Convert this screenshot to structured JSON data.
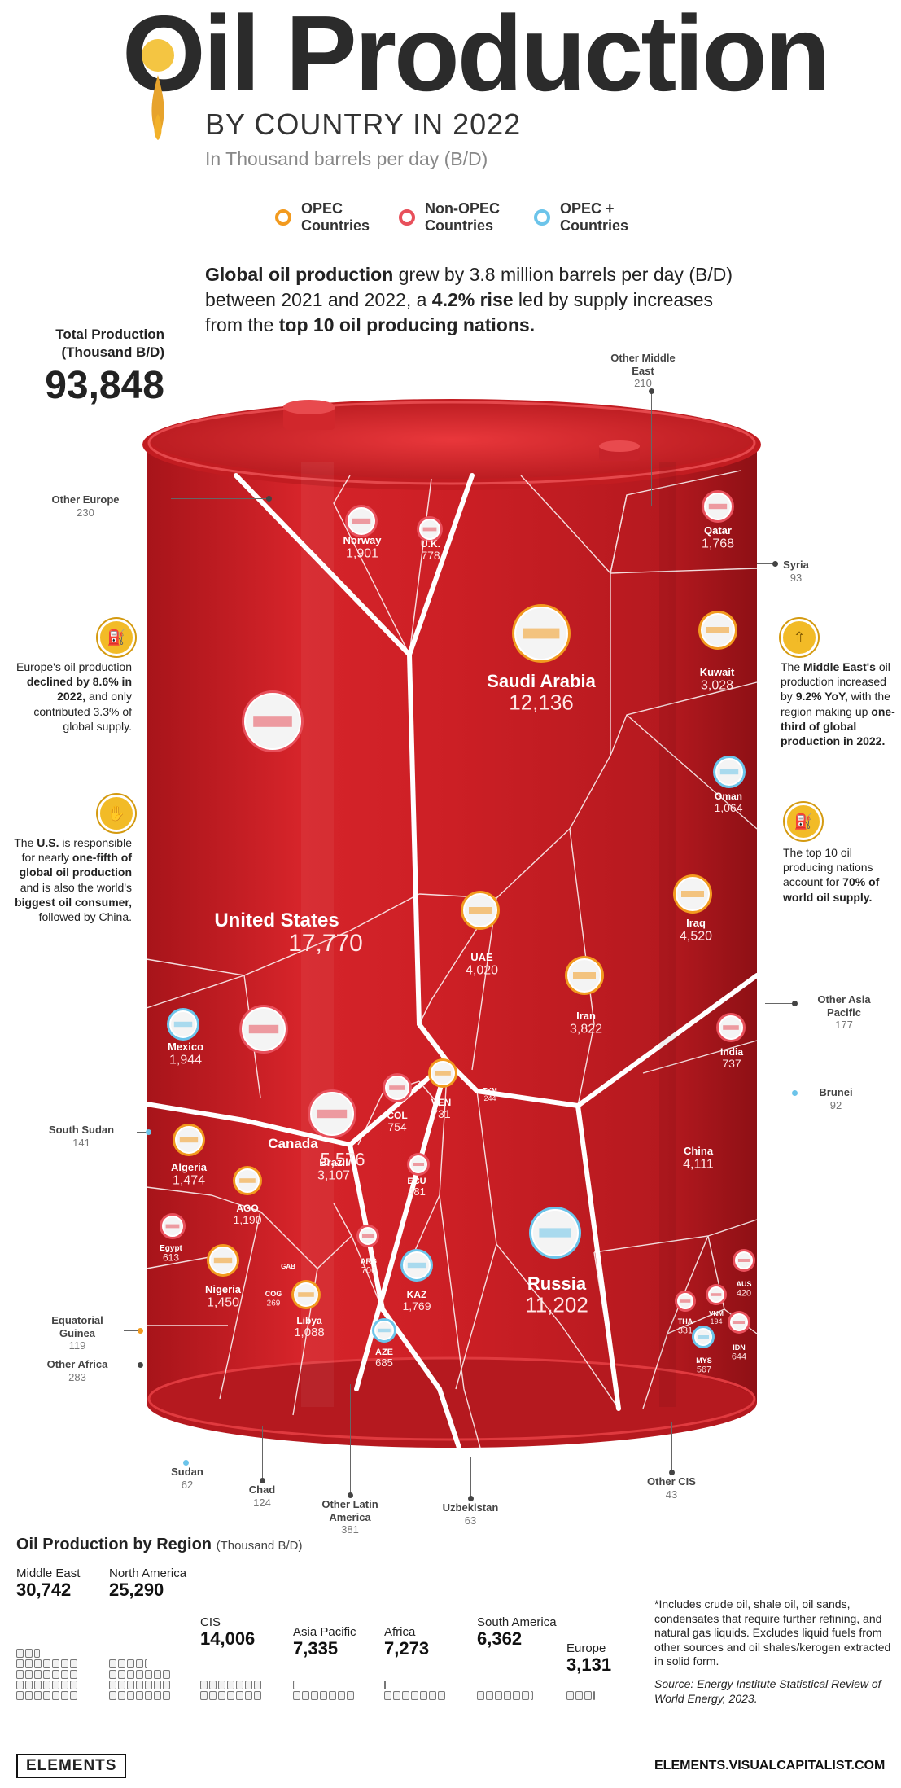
{
  "header": {
    "title": "Oil Production",
    "subtitle": "BY COUNTRY IN 2022",
    "unit": "In Thousand barrels per day (B/D)"
  },
  "legend": [
    {
      "label": "OPEC Countries",
      "color": "#f29a1f"
    },
    {
      "label": "Non-OPEC Countries",
      "color": "#e8505b"
    },
    {
      "label": "OPEC + Countries",
      "color": "#6cc4ea"
    }
  ],
  "intro": {
    "p1": "Global oil production",
    "p2": " grew by 3.8 million barrels per day (B/D) between 2021 and 2022, a ",
    "p3": "4.2% rise",
    "p4": " led by supply increases from the ",
    "p5": "top 10 oil producing nations."
  },
  "total": {
    "label": "Total Production (Thousand B/D)",
    "value": "93,848"
  },
  "callouts": {
    "europe": {
      "a": "Europe's oil production ",
      "b": "declined by 8.6% in 2022,",
      "c": " and only contributed 3.3% of global supply."
    },
    "us": {
      "a": "The ",
      "b": "U.S.",
      "c": " is responsible for nearly ",
      "d": "one-fifth of global oil production",
      "e": " and is also the world's ",
      "f": "biggest oil consumer,",
      "g": " followed by China."
    },
    "middle_east": {
      "a": "The ",
      "b": "Middle East's",
      "c": " oil production increased by ",
      "d": "9.2% YoY,",
      "e": " with the region making up ",
      "f": "one-third of global production in 2022."
    },
    "top10": {
      "a": "The top 10 oil producing nations account for ",
      "b": "70% of world oil supply."
    }
  },
  "chart_data": [
    {
      "type": "treemap",
      "title": "Oil Production by Country in 2022",
      "unit": "Thousand barrels per day (B/D)",
      "countries": [
        {
          "name": "United States",
          "value": 17770,
          "group": "Non-OPEC"
        },
        {
          "name": "Saudi Arabia",
          "value": 12136,
          "group": "OPEC"
        },
        {
          "name": "Russia",
          "value": 11202,
          "group": "OPEC+"
        },
        {
          "name": "Canada",
          "value": 5576,
          "group": "Non-OPEC"
        },
        {
          "name": "Iraq",
          "value": 4520,
          "group": "OPEC"
        },
        {
          "name": "China",
          "value": 4111,
          "group": "Non-OPEC"
        },
        {
          "name": "UAE",
          "value": 4020,
          "group": "OPEC"
        },
        {
          "name": "Iran",
          "value": 3822,
          "group": "OPEC"
        },
        {
          "name": "Brazil",
          "value": 3107,
          "group": "Non-OPEC"
        },
        {
          "name": "Kuwait",
          "value": 3028,
          "group": "OPEC"
        },
        {
          "name": "Mexico",
          "value": 1944,
          "group": "OPEC+"
        },
        {
          "name": "Norway",
          "value": 1901,
          "group": "Non-OPEC"
        },
        {
          "name": "KAZ",
          "value": 1769,
          "group": "OPEC+"
        },
        {
          "name": "Qatar",
          "value": 1768,
          "group": "Non-OPEC"
        },
        {
          "name": "Algeria",
          "value": 1474,
          "group": "OPEC"
        },
        {
          "name": "Nigeria",
          "value": 1450,
          "group": "OPEC"
        },
        {
          "name": "AGO",
          "value": 1190,
          "group": "OPEC"
        },
        {
          "name": "Libya",
          "value": 1088,
          "group": "OPEC"
        },
        {
          "name": "Oman",
          "value": 1064,
          "group": "OPEC+"
        },
        {
          "name": "U.K.",
          "value": 778,
          "group": "Non-OPEC"
        },
        {
          "name": "COL",
          "value": 754,
          "group": "Non-OPEC"
        },
        {
          "name": "India",
          "value": 737,
          "group": "Non-OPEC"
        },
        {
          "name": "VEN",
          "value": 731,
          "group": "OPEC"
        },
        {
          "name": "ARG",
          "value": 706,
          "group": "Non-OPEC"
        },
        {
          "name": "AZE",
          "value": 685,
          "group": "OPEC+"
        },
        {
          "name": "IDN",
          "value": 644,
          "group": "Non-OPEC"
        },
        {
          "name": "Egypt",
          "value": 613,
          "group": "Non-OPEC"
        },
        {
          "name": "MYS",
          "value": 567,
          "group": "OPEC+"
        },
        {
          "name": "ECU",
          "value": 481,
          "group": "Non-OPEC"
        },
        {
          "name": "AUS",
          "value": 420,
          "group": "Non-OPEC"
        },
        {
          "name": "Other Latin America",
          "value": 381,
          "group": "Non-OPEC"
        },
        {
          "name": "THA",
          "value": 331,
          "group": "Non-OPEC"
        },
        {
          "name": "Other Africa",
          "value": 283,
          "group": "Non-OPEC"
        },
        {
          "name": "COG",
          "value": 269,
          "group": "OPEC"
        },
        {
          "name": "TKM",
          "value": 244,
          "group": "Non-OPEC"
        },
        {
          "name": "Other Europe",
          "value": 230,
          "group": "Non-OPEC"
        },
        {
          "name": "Other Middle East",
          "value": 210,
          "group": "Non-OPEC"
        },
        {
          "name": "VNM",
          "value": 194,
          "group": "Non-OPEC"
        },
        {
          "name": "Other Asia Pacific",
          "value": 177,
          "group": "Non-OPEC"
        },
        {
          "name": "South Sudan",
          "value": 141,
          "group": "OPEC+"
        },
        {
          "name": "Chad",
          "value": 124,
          "group": "Non-OPEC"
        },
        {
          "name": "Equatorial Guinea",
          "value": 119,
          "group": "OPEC"
        },
        {
          "name": "Syria",
          "value": 93,
          "group": "Non-OPEC"
        },
        {
          "name": "Brunei",
          "value": 92,
          "group": "OPEC+"
        },
        {
          "name": "Uzbekistan",
          "value": 63,
          "group": "Non-OPEC"
        },
        {
          "name": "Sudan",
          "value": 62,
          "group": "OPEC+"
        },
        {
          "name": "Other CIS",
          "value": 43,
          "group": "Non-OPEC"
        }
      ]
    },
    {
      "type": "bar",
      "title": "Oil Production by Region",
      "unit": "(Thousand B/D)",
      "categories": [
        "Middle East",
        "North America",
        "CIS",
        "Asia Pacific",
        "Africa",
        "South America",
        "Europe"
      ],
      "values": [
        30742,
        25290,
        14006,
        7335,
        7273,
        6362,
        3131
      ],
      "labels": [
        "30,742",
        "25,290",
        "14,006",
        "7,335",
        "7,273",
        "6,362",
        "3,131"
      ]
    }
  ],
  "footnote": "*Includes crude oil, shale oil, oil sands, condensates that require further refining, and natural gas liquids. Excludes liquid fuels from other sources and oil shales/kerogen extracted in solid form.",
  "source": "Source: Energy Institute Statistical Review of World Energy, 2023.",
  "brand": {
    "left": "ELEMENTS",
    "right": "ELEMENTS.VISUALCAPITALIST.COM"
  }
}
